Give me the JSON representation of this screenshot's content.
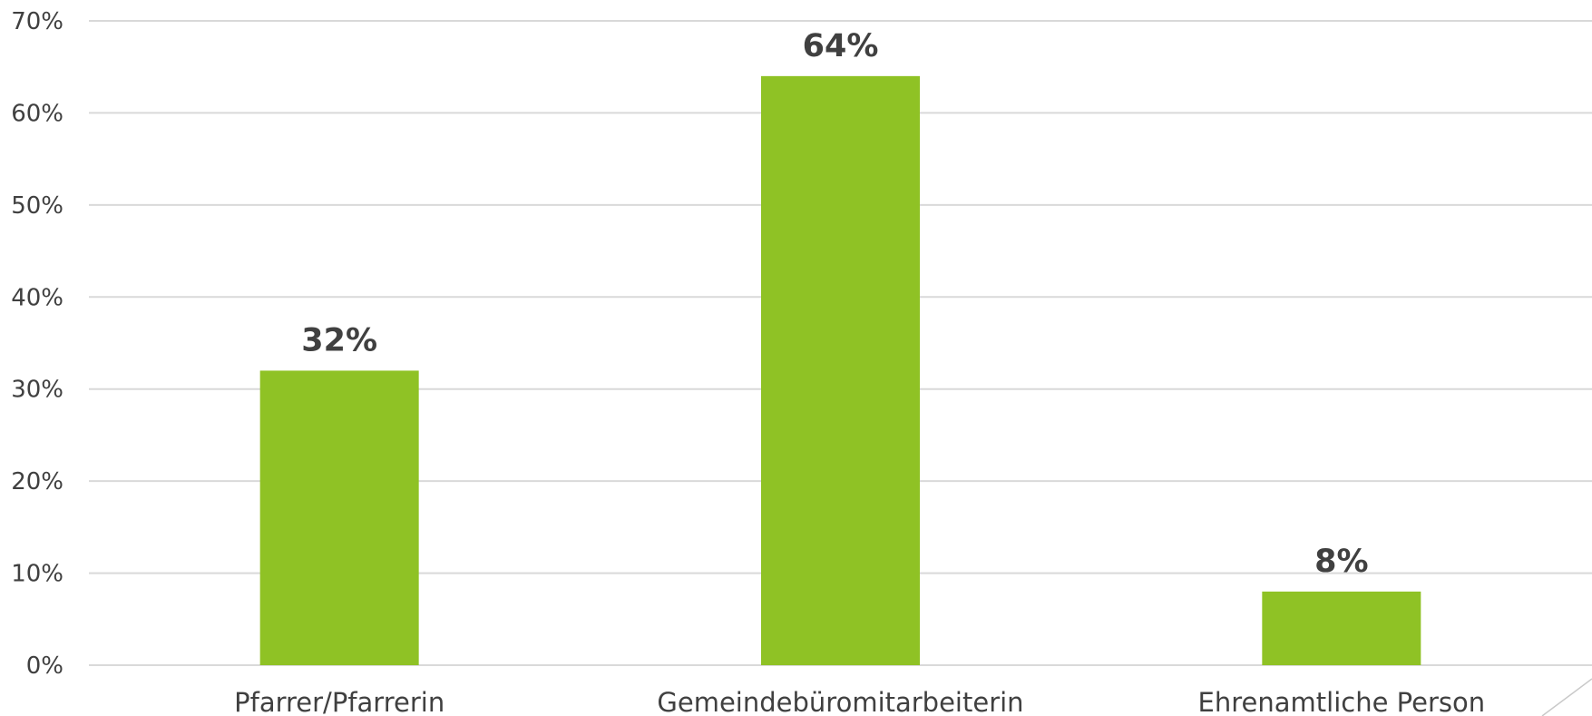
{
  "chart_data": {
    "type": "bar",
    "title": "",
    "xlabel": "",
    "ylabel": "",
    "categories": [
      "Pfarrer/Pfarrerin",
      "Gemeindebüromitarbeiterin",
      "Ehrenamtliche Person"
    ],
    "values": [
      32,
      64,
      8
    ],
    "data_labels": [
      "32%",
      "64%",
      "8%"
    ],
    "ylim": [
      0,
      70
    ],
    "yticks": [
      0,
      10,
      20,
      30,
      40,
      50,
      60,
      70
    ],
    "ytick_labels": [
      "0%",
      "10%",
      "20%",
      "30%",
      "40%",
      "50%",
      "60%",
      "70%"
    ],
    "grid": true,
    "legend": "none",
    "bar_color": "#8fc225",
    "text_color": "#404040",
    "grid_color": "#d9d9d9"
  }
}
